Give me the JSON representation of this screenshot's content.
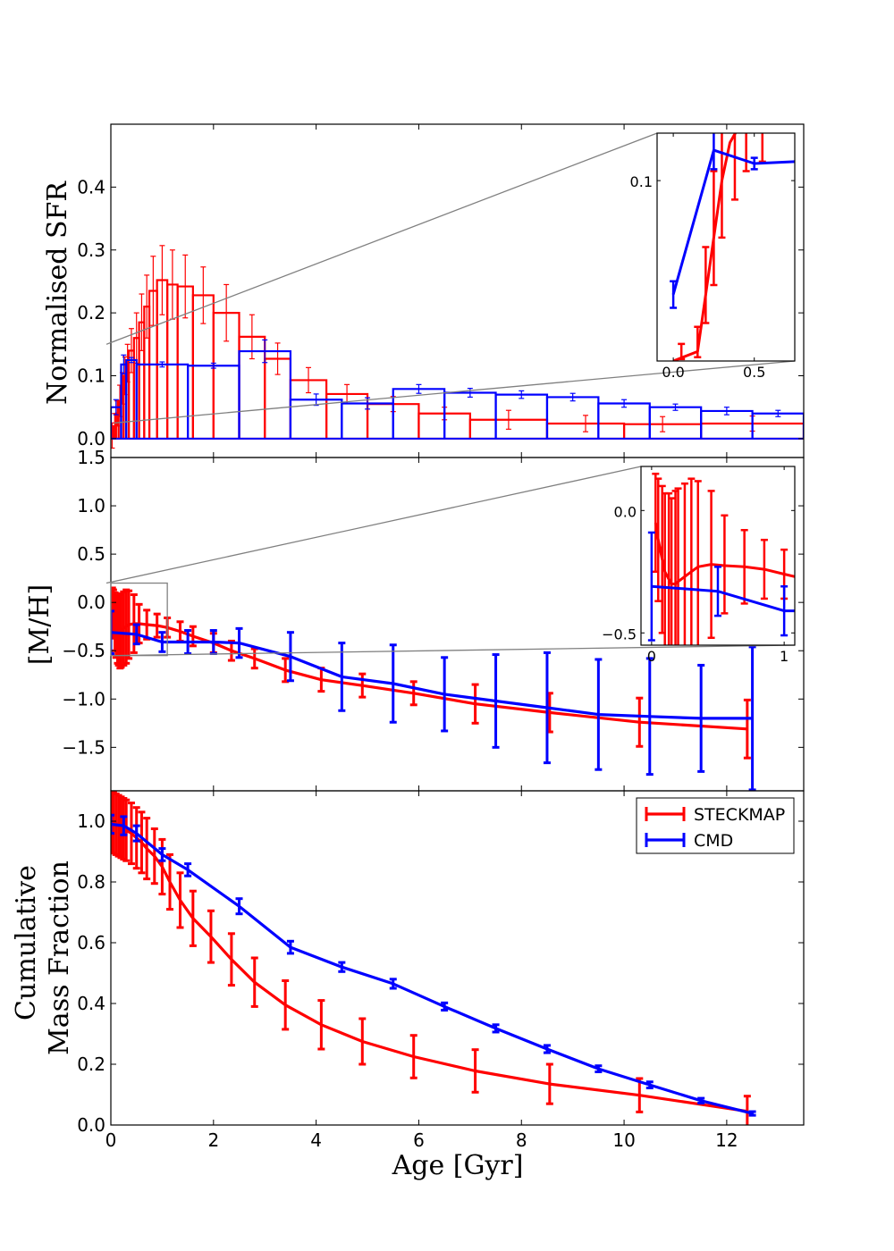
{
  "colors": {
    "steckmap": "#ff0000",
    "cmd": "#0000ff",
    "zoom": "#808080"
  },
  "chart_data": [
    {
      "id": "sfr",
      "type": "step",
      "ylabel": "Normalised SFR",
      "xlim": [
        0,
        13.5
      ],
      "ylim": [
        -0.03,
        0.5
      ],
      "xticks": [],
      "yticks": [
        {
          "v": 0.0,
          "label": "0.0"
        },
        {
          "v": 0.1,
          "label": "0.1"
        },
        {
          "v": 0.2,
          "label": "0.2"
        },
        {
          "v": 0.3,
          "label": "0.3"
        },
        {
          "v": 0.4,
          "label": "0.4"
        }
      ],
      "series": [
        {
          "name": "STECKMAP",
          "color_key": "steckmap",
          "bins": [
            [
              0.0,
              0.05,
              0.005,
              0.02
            ],
            [
              0.05,
              0.1,
              0.02,
              0.02
            ],
            [
              0.1,
              0.15,
              0.04,
              0.02
            ],
            [
              0.15,
              0.2,
              0.06,
              0.025
            ],
            [
              0.2,
              0.25,
              0.08,
              0.025
            ],
            [
              0.25,
              0.3,
              0.1,
              0.03
            ],
            [
              0.3,
              0.35,
              0.12,
              0.03
            ],
            [
              0.35,
              0.45,
              0.14,
              0.035
            ],
            [
              0.45,
              0.55,
              0.16,
              0.04
            ],
            [
              0.55,
              0.65,
              0.185,
              0.045
            ],
            [
              0.65,
              0.75,
              0.21,
              0.05
            ],
            [
              0.75,
              0.9,
              0.235,
              0.055
            ],
            [
              0.9,
              1.1,
              0.252,
              0.055
            ],
            [
              1.1,
              1.3,
              0.245,
              0.055
            ],
            [
              1.3,
              1.6,
              0.242,
              0.05
            ],
            [
              1.6,
              2.0,
              0.228,
              0.045
            ],
            [
              2.0,
              2.5,
              0.2,
              0.045
            ],
            [
              2.5,
              3.0,
              0.162,
              0.035
            ],
            [
              3.0,
              3.5,
              0.127,
              0.025
            ],
            [
              3.5,
              4.2,
              0.093,
              0.02
            ],
            [
              4.2,
              5.0,
              0.071,
              0.015
            ],
            [
              5.0,
              6.0,
              0.055,
              0.012
            ],
            [
              6.0,
              7.0,
              0.04,
              0.01
            ],
            [
              7.0,
              8.5,
              0.03,
              0.015
            ],
            [
              8.5,
              10.0,
              0.024,
              0.013
            ],
            [
              10.0,
              11.5,
              0.023,
              0.012
            ],
            [
              11.5,
              13.5,
              0.024,
              0.012
            ]
          ]
        },
        {
          "name": "CMD",
          "color_key": "cmd",
          "bins": [
            [
              0.0,
              0.2,
              0.05,
              0.012
            ],
            [
              0.2,
              0.3,
              0.118,
              0.015
            ],
            [
              0.3,
              0.5,
              0.125,
              0.004
            ],
            [
              0.5,
              1.5,
              0.118,
              0.004
            ],
            [
              1.5,
              2.5,
              0.116,
              0.004
            ],
            [
              2.5,
              3.5,
              0.139,
              0.018
            ],
            [
              3.5,
              4.5,
              0.062,
              0.009
            ],
            [
              4.5,
              5.5,
              0.056,
              0.009
            ],
            [
              5.5,
              6.5,
              0.079,
              0.007
            ],
            [
              6.5,
              7.5,
              0.073,
              0.007
            ],
            [
              7.5,
              8.5,
              0.07,
              0.006
            ],
            [
              8.5,
              9.5,
              0.066,
              0.006
            ],
            [
              9.5,
              10.5,
              0.056,
              0.006
            ],
            [
              10.5,
              11.5,
              0.05,
              0.005
            ],
            [
              11.5,
              12.5,
              0.044,
              0.006
            ],
            [
              12.5,
              13.5,
              0.04,
              0.005
            ]
          ]
        }
      ],
      "inset": {
        "xlim": [
          -0.1,
          0.75
        ],
        "ylim": [
          0.005,
          0.125
        ],
        "xticks": [
          {
            "v": 0.0,
            "label": "0.0"
          },
          {
            "v": 0.5,
            "label": "0.5"
          }
        ],
        "yticks": [
          {
            "v": 0.1,
            "label": "0.1"
          }
        ],
        "zoom_region": {
          "xlim": [
            0.0,
            1.1
          ],
          "ylim": [
            0.025,
            0.15
          ]
        },
        "steckmap_line": [
          [
            0.0,
            0.005
          ],
          [
            0.15,
            0.01
          ],
          [
            0.2,
            0.04
          ],
          [
            0.25,
            0.07
          ],
          [
            0.3,
            0.1
          ],
          [
            0.35,
            0.12
          ],
          [
            0.45,
            0.135
          ]
        ],
        "steckmap_err": [
          [
            0.05,
            0.01,
            0.004
          ],
          [
            0.15,
            0.015,
            0.008
          ],
          [
            0.2,
            0.045,
            0.02
          ],
          [
            0.25,
            0.075,
            0.03
          ],
          [
            0.3,
            0.1,
            0.03
          ],
          [
            0.38,
            0.125,
            0.035
          ],
          [
            0.45,
            0.14,
            0.035
          ],
          [
            0.55,
            0.145,
            0.035
          ]
        ],
        "cmd_line": [
          [
            0.0,
            0.04
          ],
          [
            0.25,
            0.116
          ],
          [
            0.5,
            0.109
          ],
          [
            0.75,
            0.11
          ]
        ],
        "cmd_err": [
          [
            0.0,
            0.04,
            0.007
          ],
          [
            0.25,
            0.116,
            0.01
          ],
          [
            0.5,
            0.109,
            0.003
          ]
        ]
      }
    },
    {
      "id": "metallicity",
      "type": "line",
      "ylabel": "[M/H]",
      "xlim": [
        0,
        13.5
      ],
      "ylim": [
        -1.95,
        1.5
      ],
      "xticks": [],
      "yticks": [
        {
          "v": 1.5,
          "label": "1.5"
        },
        {
          "v": 1.0,
          "label": "1.0"
        },
        {
          "v": 0.5,
          "label": "0.5"
        },
        {
          "v": 0.0,
          "label": "0.0"
        },
        {
          "v": -0.5,
          "label": "−0.5"
        },
        {
          "v": -1.0,
          "label": "−1.0"
        },
        {
          "v": -1.5,
          "label": "−1.5"
        }
      ],
      "series": [
        {
          "name": "STECKMAP",
          "color_key": "steckmap",
          "x": [
            0.03,
            0.05,
            0.08,
            0.1,
            0.13,
            0.15,
            0.18,
            0.2,
            0.25,
            0.3,
            0.35,
            0.45,
            0.55,
            0.7,
            0.9,
            1.1,
            1.35,
            1.6,
            2.0,
            2.35,
            2.8,
            3.4,
            4.1,
            4.9,
            5.9,
            7.1,
            8.55,
            10.3,
            12.4
          ],
          "y": [
            -0.05,
            -0.12,
            -0.2,
            -0.25,
            -0.28,
            -0.3,
            -0.3,
            -0.29,
            -0.27,
            -0.25,
            -0.23,
            -0.22,
            -0.22,
            -0.23,
            -0.24,
            -0.26,
            -0.3,
            -0.35,
            -0.42,
            -0.5,
            -0.58,
            -0.7,
            -0.8,
            -0.86,
            -0.94,
            -1.05,
            -1.14,
            -1.24,
            -1.31
          ],
          "err": [
            0.2,
            0.25,
            0.3,
            0.32,
            0.35,
            0.35,
            0.38,
            0.38,
            0.38,
            0.38,
            0.35,
            0.3,
            0.2,
            0.15,
            0.12,
            0.1,
            0.1,
            0.1,
            0.1,
            0.1,
            0.1,
            0.12,
            0.12,
            0.12,
            0.12,
            0.2,
            0.2,
            0.25,
            0.3
          ]
        },
        {
          "name": "CMD",
          "color_key": "cmd",
          "x": [
            0.0,
            0.5,
            1.0,
            1.5,
            2.0,
            2.5,
            3.5,
            4.5,
            5.5,
            6.5,
            7.5,
            8.5,
            9.5,
            10.5,
            11.5,
            12.5
          ],
          "y": [
            -0.31,
            -0.33,
            -0.41,
            -0.41,
            -0.41,
            -0.42,
            -0.56,
            -0.77,
            -0.84,
            -0.95,
            -1.02,
            -1.09,
            -1.16,
            -1.18,
            -1.2,
            -1.2
          ],
          "err": [
            0.22,
            0.1,
            0.1,
            0.12,
            0.12,
            0.15,
            0.25,
            0.35,
            0.4,
            0.38,
            0.48,
            0.57,
            0.57,
            0.6,
            0.55,
            0.74
          ]
        }
      ],
      "inset": {
        "xlim": [
          -0.08,
          1.08
        ],
        "ylim": [
          -0.55,
          0.18
        ],
        "xticks": [
          {
            "v": 0,
            "label": "0"
          },
          {
            "v": 1,
            "label": "1"
          }
        ],
        "yticks": [
          {
            "v": 0.0,
            "label": "0.0"
          },
          {
            "v": -0.5,
            "label": "−0.5"
          }
        ],
        "zoom_region": {
          "xlim": [
            0.0,
            1.1
          ],
          "ylim": [
            -0.55,
            0.2
          ]
        },
        "steckmap_line": [
          [
            0.03,
            -0.05
          ],
          [
            0.05,
            -0.12
          ],
          [
            0.08,
            -0.2
          ],
          [
            0.1,
            -0.25
          ],
          [
            0.13,
            -0.28
          ],
          [
            0.15,
            -0.3
          ],
          [
            0.18,
            -0.3
          ],
          [
            0.2,
            -0.29
          ],
          [
            0.25,
            -0.27
          ],
          [
            0.3,
            -0.25
          ],
          [
            0.35,
            -0.23
          ],
          [
            0.45,
            -0.22
          ],
          [
            0.55,
            -0.225
          ],
          [
            0.7,
            -0.23
          ],
          [
            0.85,
            -0.24
          ],
          [
            1.0,
            -0.26
          ],
          [
            1.08,
            -0.27
          ]
        ],
        "steckmap_err": [
          [
            0.03,
            -0.05,
            0.2
          ],
          [
            0.05,
            -0.12,
            0.25
          ],
          [
            0.08,
            -0.2,
            0.3
          ],
          [
            0.1,
            -0.25,
            0.32
          ],
          [
            0.13,
            -0.28,
            0.35
          ],
          [
            0.15,
            -0.3,
            0.35
          ],
          [
            0.18,
            -0.3,
            0.38
          ],
          [
            0.2,
            -0.29,
            0.38
          ],
          [
            0.25,
            -0.27,
            0.38
          ],
          [
            0.3,
            -0.25,
            0.38
          ],
          [
            0.35,
            -0.23,
            0.35
          ],
          [
            0.45,
            -0.22,
            0.3
          ],
          [
            0.55,
            -0.22,
            0.2
          ],
          [
            0.7,
            -0.23,
            0.15
          ],
          [
            0.85,
            -0.24,
            0.12
          ],
          [
            1.0,
            -0.26,
            0.1
          ]
        ],
        "cmd_line": [
          [
            0.0,
            -0.31
          ],
          [
            0.5,
            -0.33
          ],
          [
            1.0,
            -0.41
          ],
          [
            1.08,
            -0.41
          ]
        ],
        "cmd_err": [
          [
            0.0,
            -0.31,
            0.22
          ],
          [
            0.5,
            -0.33,
            0.1
          ],
          [
            1.0,
            -0.41,
            0.1
          ]
        ]
      }
    },
    {
      "id": "cumulative",
      "type": "line",
      "ylabel_lines": [
        "Cumulative",
        "Mass Fraction"
      ],
      "xlabel": "Age [Gyr]",
      "xlim": [
        0,
        13.5
      ],
      "ylim": [
        0.0,
        1.1
      ],
      "xticks": [
        {
          "v": 0,
          "label": "0"
        },
        {
          "v": 2,
          "label": "2"
        },
        {
          "v": 4,
          "label": "4"
        },
        {
          "v": 6,
          "label": "6"
        },
        {
          "v": 8,
          "label": "8"
        },
        {
          "v": 10,
          "label": "10"
        },
        {
          "v": 12,
          "label": "12"
        }
      ],
      "yticks": [
        {
          "v": 0.0,
          "label": "0.0"
        },
        {
          "v": 0.2,
          "label": "0.2"
        },
        {
          "v": 0.4,
          "label": "0.4"
        },
        {
          "v": 0.6,
          "label": "0.6"
        },
        {
          "v": 0.8,
          "label": "0.8"
        },
        {
          "v": 1.0,
          "label": "1.0"
        }
      ],
      "legend": {
        "position": "upper right",
        "entries": [
          "STECKMAP",
          "CMD"
        ]
      },
      "series": [
        {
          "name": "STECKMAP",
          "color_key": "steckmap",
          "x": [
            0.0,
            0.05,
            0.1,
            0.15,
            0.2,
            0.25,
            0.3,
            0.4,
            0.5,
            0.6,
            0.7,
            0.85,
            1.0,
            1.15,
            1.35,
            1.6,
            1.95,
            2.35,
            2.8,
            3.4,
            4.1,
            4.9,
            5.9,
            7.1,
            8.55,
            10.3,
            12.4
          ],
          "y": [
            1.0,
            0.995,
            0.99,
            0.985,
            0.98,
            0.975,
            0.97,
            0.96,
            0.945,
            0.93,
            0.91,
            0.885,
            0.85,
            0.8,
            0.74,
            0.68,
            0.62,
            0.545,
            0.47,
            0.395,
            0.33,
            0.275,
            0.225,
            0.178,
            0.135,
            0.098,
            0.045
          ],
          "err": [
            0.1,
            0.1,
            0.1,
            0.1,
            0.1,
            0.1,
            0.1,
            0.1,
            0.1,
            0.1,
            0.1,
            0.09,
            0.09,
            0.09,
            0.09,
            0.09,
            0.085,
            0.085,
            0.08,
            0.08,
            0.08,
            0.075,
            0.07,
            0.07,
            0.065,
            0.055,
            0.05
          ]
        },
        {
          "name": "CMD",
          "color_key": "cmd",
          "x": [
            0.0,
            0.25,
            0.5,
            1.0,
            1.5,
            2.5,
            3.5,
            4.5,
            5.5,
            6.5,
            7.5,
            8.5,
            9.5,
            10.5,
            11.5,
            12.5
          ],
          "y": [
            0.99,
            0.985,
            0.96,
            0.89,
            0.84,
            0.72,
            0.585,
            0.52,
            0.465,
            0.39,
            0.318,
            0.25,
            0.185,
            0.132,
            0.08,
            0.038
          ],
          "err": [
            0.03,
            0.03,
            0.025,
            0.02,
            0.02,
            0.025,
            0.02,
            0.015,
            0.015,
            0.012,
            0.012,
            0.012,
            0.01,
            0.01,
            0.008,
            0.006
          ]
        }
      ]
    }
  ]
}
